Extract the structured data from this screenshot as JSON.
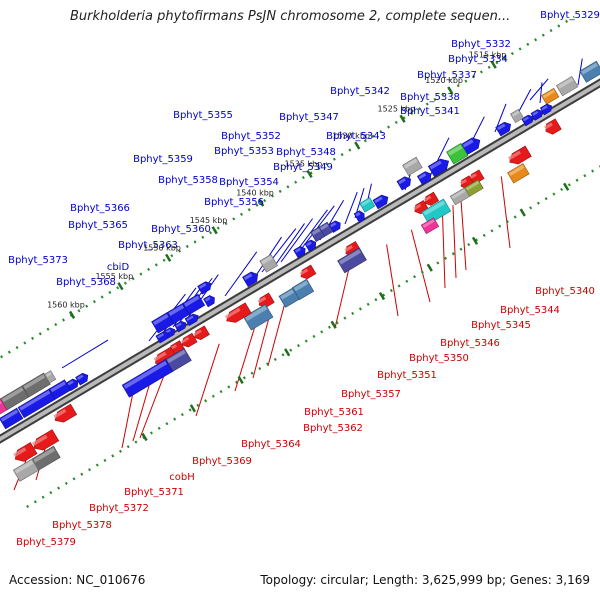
{
  "title": "Burkholderia phytofirmans PsJN chromosome 2, complete sequen...",
  "accession": "Accession: NC_010676",
  "topology": "Topology: circular; Length: 3,625,999 bp; Genes: 3,169",
  "colors": {
    "forward_label": "#0000cc",
    "reverse_label": "#cc0000",
    "backbone": "#888888",
    "tick": "#2a8a2a"
  },
  "ticks": [
    {
      "label": "1515 kbp",
      "t": 0.87
    },
    {
      "label": "1520 kbp",
      "t": 0.8
    },
    {
      "label": "1525 kbp",
      "t": 0.723
    },
    {
      "label": "1530 kbp",
      "t": 0.65
    },
    {
      "label": "1535 kbp",
      "t": 0.573
    },
    {
      "label": "1540 kbp",
      "t": 0.495
    },
    {
      "label": "1545 kbp",
      "t": 0.42
    },
    {
      "label": "1550 kbp",
      "t": 0.345
    },
    {
      "label": "1555 kbp",
      "t": 0.268
    },
    {
      "label": "1560 kbp",
      "t": 0.19
    }
  ],
  "forward_labels": [
    {
      "name": "Bphyt_5329",
      "t": 0.98
    },
    {
      "name": "Bphyt_5332",
      "t": 0.925
    },
    {
      "name": "Bphyt_5334",
      "t": 0.915
    },
    {
      "name": "Bphyt_5337",
      "t": 0.897
    },
    {
      "name": "Bphyt_5338",
      "t": 0.857
    },
    {
      "name": "Bphyt_5341",
      "t": 0.822
    },
    {
      "name": "Bphyt_5342",
      "t": 0.765
    },
    {
      "name": "Bphyt_5343",
      "t": 0.712
    },
    {
      "name": "Bphyt_5347",
      "t": 0.64
    },
    {
      "name": "Bphyt_5348",
      "t": 0.628
    },
    {
      "name": "Bphyt_5349",
      "t": 0.617
    },
    {
      "name": "Bphyt_5355",
      "t": 0.595
    },
    {
      "name": "Bphyt_5352",
      "t": 0.58
    },
    {
      "name": "Bphyt_5353",
      "t": 0.569
    },
    {
      "name": "Bphyt_5354",
      "t": 0.545
    },
    {
      "name": "Bphyt_5359",
      "t": 0.532
    },
    {
      "name": "Bphyt_5358",
      "t": 0.518
    },
    {
      "name": "Bphyt_5356",
      "t": 0.495
    },
    {
      "name": "Bphyt_5360",
      "t": 0.455
    },
    {
      "name": "Bphyt_5366",
      "t": 0.393
    },
    {
      "name": "Bphyt_5365",
      "t": 0.383
    },
    {
      "name": "Bphyt_5363",
      "t": 0.37
    },
    {
      "name": "cbiD",
      "t": 0.357
    },
    {
      "name": "Bphyt_5368",
      "t": 0.34
    },
    {
      "name": "Bphyt_5373",
      "t": 0.215
    }
  ],
  "reverse_labels": [
    {
      "name": "Bphyt_5340",
      "t": 0.8
    },
    {
      "name": "Bphyt_5344",
      "t": 0.735
    },
    {
      "name": "Bphyt_5345",
      "t": 0.722
    },
    {
      "name": "Bphyt_5346",
      "t": 0.705
    },
    {
      "name": "Bphyt_5350",
      "t": 0.655
    },
    {
      "name": "Bphyt_5351",
      "t": 0.615
    },
    {
      "name": "Bphyt_5357",
      "t": 0.555
    },
    {
      "name": "Bphyt_5361",
      "t": 0.45
    },
    {
      "name": "Bphyt_5362",
      "t": 0.427
    },
    {
      "name": "Bphyt_5364",
      "t": 0.405
    },
    {
      "name": "Bphyt_5369",
      "t": 0.345
    },
    {
      "name": "cobH",
      "t": 0.255
    },
    {
      "name": "Bphyt_5371",
      "t": 0.232
    },
    {
      "name": "Bphyt_5372",
      "t": 0.205
    },
    {
      "name": "Bphyt_5378",
      "t": 0.065
    },
    {
      "name": "Bphyt_5379",
      "t": 0.035
    }
  ]
}
